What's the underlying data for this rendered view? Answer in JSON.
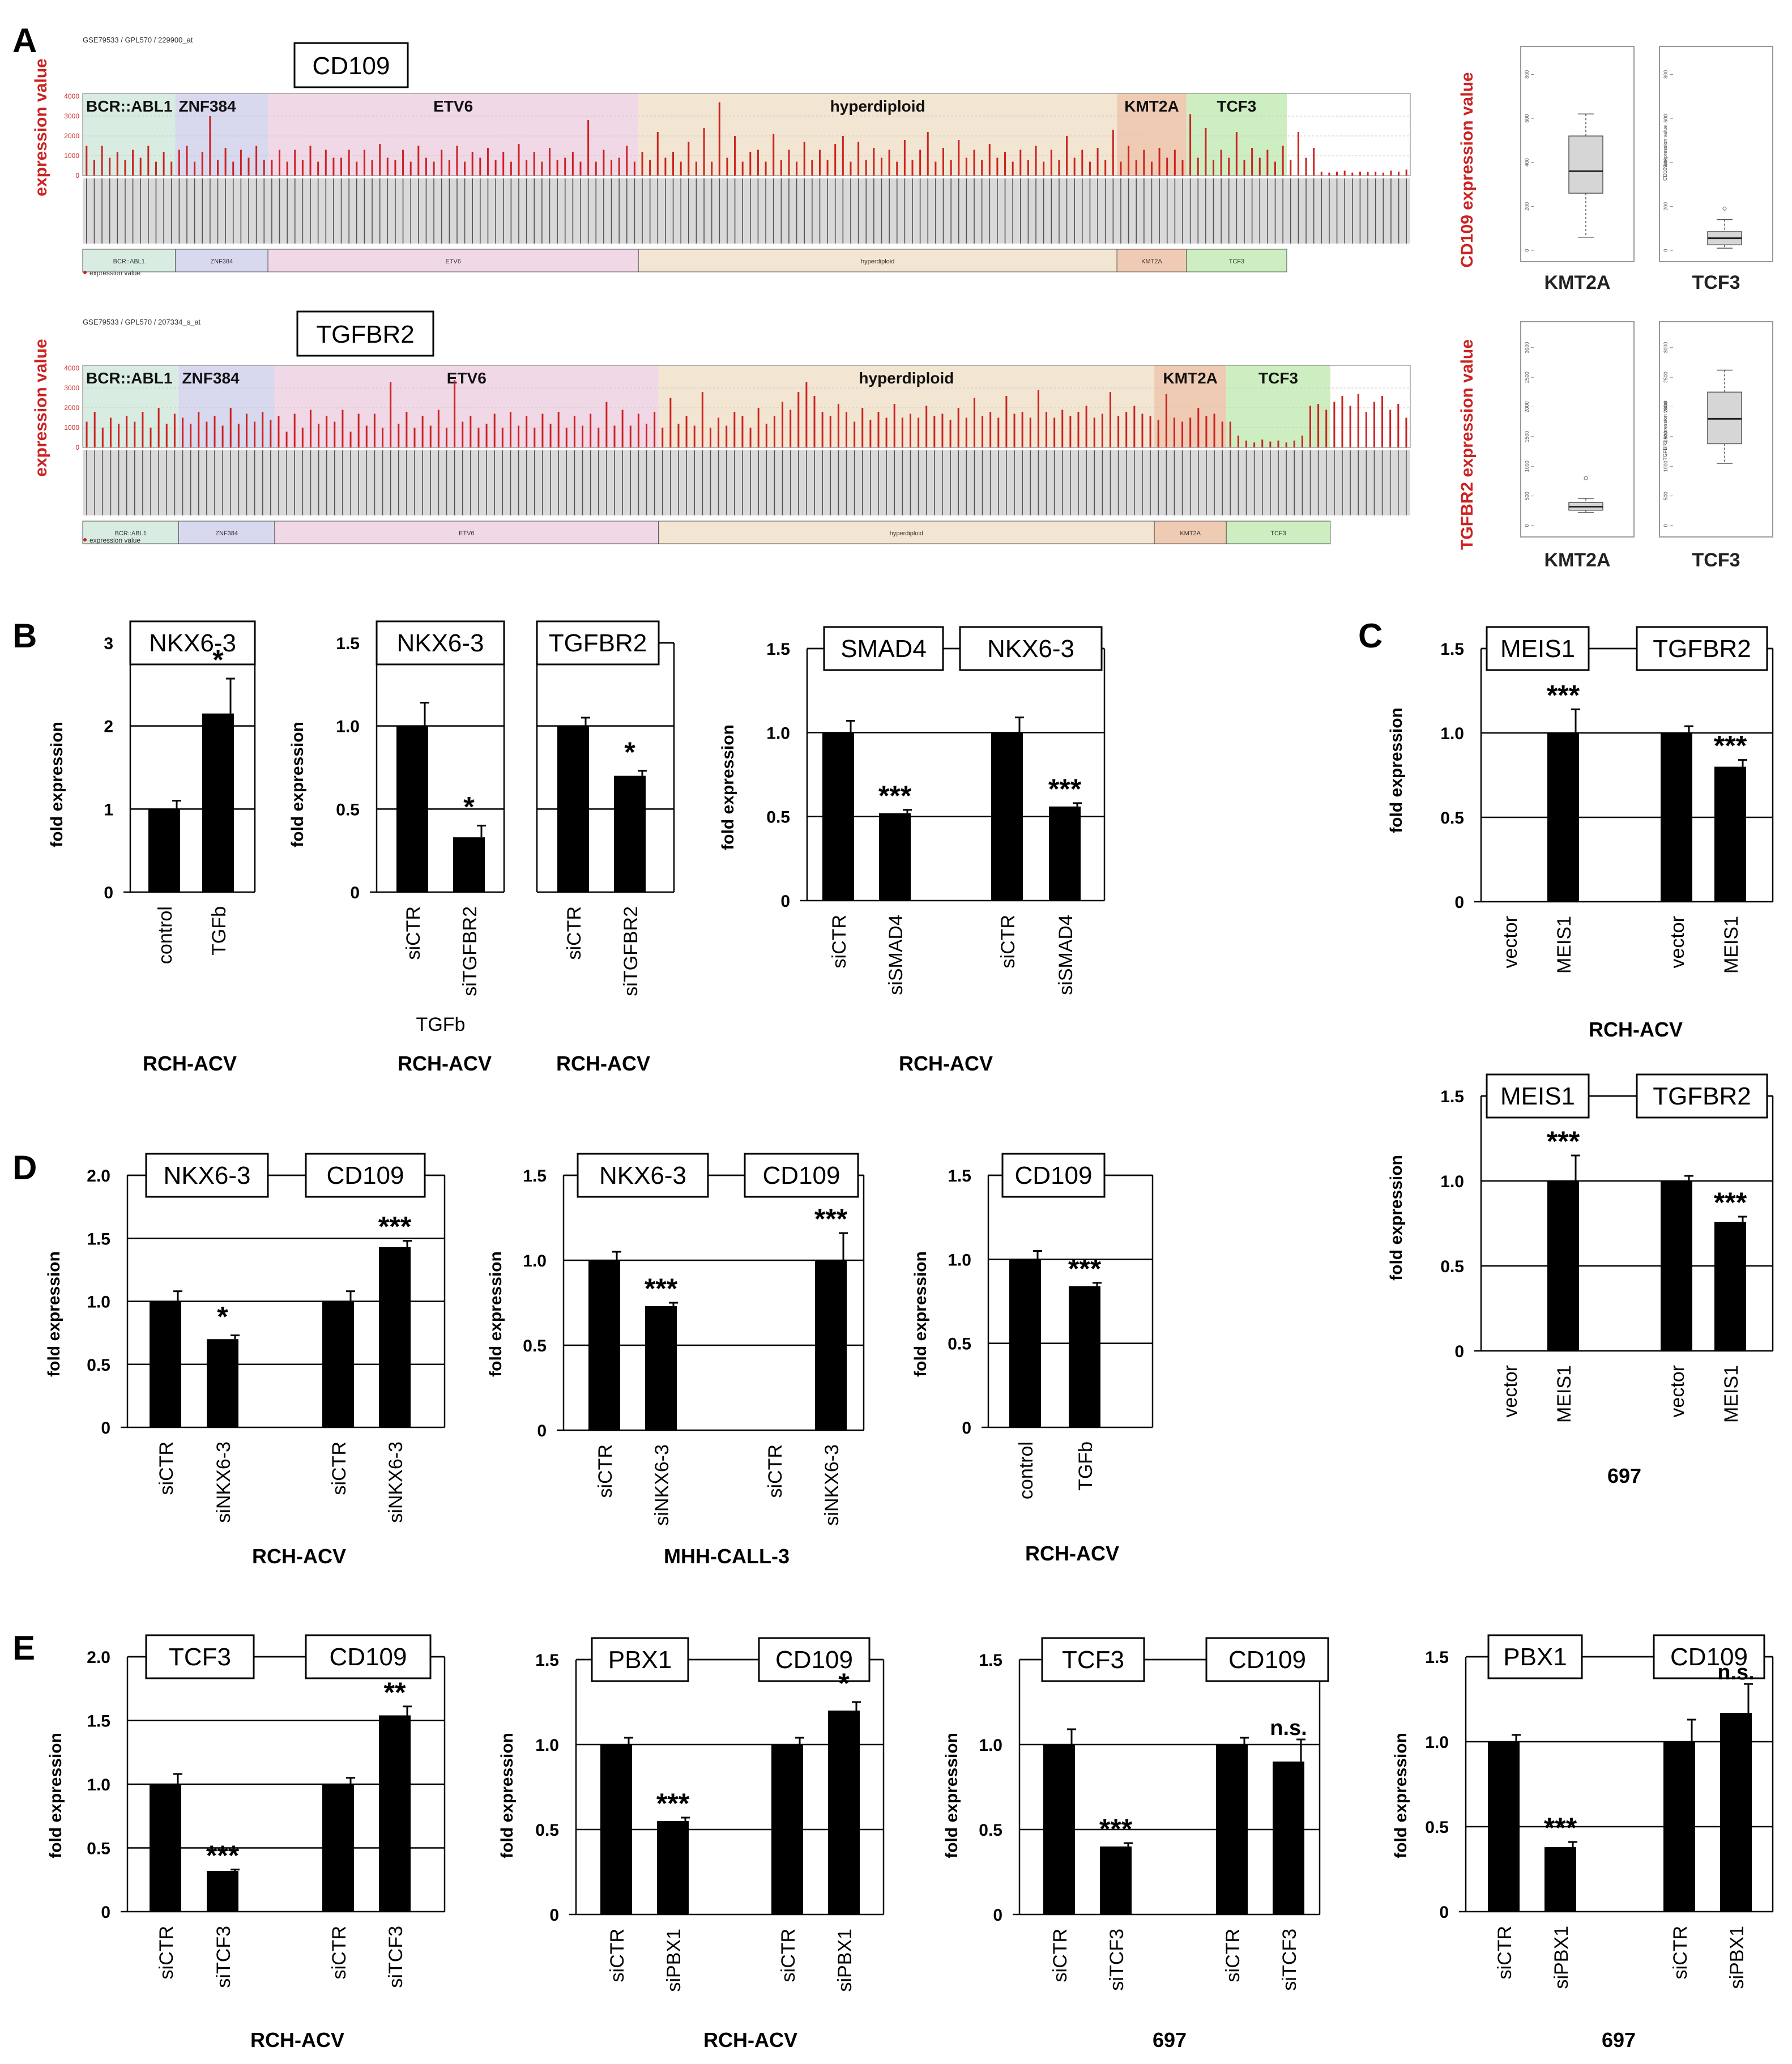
{
  "figure": {
    "panel_letters": [
      "A",
      "B",
      "C",
      "D",
      "E"
    ],
    "stat_labels": {
      "n3": "***",
      "n2": "**",
      "n1": "*",
      "ns": "n.s."
    },
    "fold_ylabel": "fold expression"
  },
  "panel_a": {
    "groups": [
      "BCR::ABL1",
      "ZNF384",
      "ETV6",
      "hyperdiploid",
      "KMT2A",
      "TCF3"
    ],
    "group_colors": [
      "#d8ece2",
      "#d8d8ee",
      "#f0d8e6",
      "#f2e6d2",
      "#efcbb4",
      "#cdeec0"
    ],
    "yaxis_label": "expression value",
    "legend_text": "expression value",
    "ytick_labels": [
      "4000",
      "3000",
      "2000",
      "1000",
      "0"
    ],
    "top_strip": {
      "gene": "CD109",
      "source": "GSE79533 / GPL570 / 229900_at",
      "box_ylabel": "CD109 expression value",
      "box_inner_label": "CD109 expression value",
      "box_ticks_kmt2a": [
        "800",
        "600",
        "400",
        "200",
        "0"
      ],
      "box_ticks_tcf3": [
        "800",
        "600",
        "400",
        "200",
        "0"
      ]
    },
    "bottom_strip": {
      "gene": "TGFBR2",
      "source": "GSE79533 / GPL570 / 207334_s_at",
      "box_ylabel": "TGFBR2 expression value",
      "box_inner_label": "TGFBR2 expression value",
      "box_ticks_kmt2a": [
        "3000",
        "2500",
        "2000",
        "1500",
        "1000",
        "500",
        "0"
      ],
      "box_ticks_tcf3": [
        "3000",
        "2500",
        "2000",
        "1500",
        "1000",
        "500",
        "0"
      ]
    }
  },
  "chart_data": [
    {
      "id": "A_cd109_strip",
      "type": "bar",
      "title": "CD109",
      "subtitle": "GSE79533 / GPL570 / 229900_at",
      "ylabel": "expression value",
      "ylim": [
        0,
        4000
      ],
      "groups": [
        "BCR::ABL1",
        "ZNF384",
        "ETV6",
        "hyperdiploid",
        "KMT2A",
        "TCF3"
      ],
      "group_sizes": [
        12,
        12,
        48,
        62,
        9,
        13
      ],
      "values": [
        1500,
        800,
        1500,
        900,
        1200,
        800,
        1300,
        900,
        1500,
        700,
        1200,
        700,
        1300,
        1500,
        700,
        1200,
        3000,
        800,
        1400,
        700,
        1300,
        900,
        1500,
        800,
        800,
        1300,
        700,
        1300,
        800,
        1500,
        700,
        1300,
        900,
        900,
        1300,
        700,
        1300,
        800,
        1600,
        900,
        800,
        1300,
        700,
        1500,
        900,
        700,
        1300,
        800,
        1500,
        700,
        1200,
        900,
        1400,
        800,
        1200,
        700,
        1600,
        800,
        1200,
        700,
        1400,
        800,
        900,
        1200,
        700,
        2800,
        700,
        1300,
        800,
        900,
        1500,
        700,
        1200,
        800,
        2200,
        900,
        1200,
        700,
        1700,
        700,
        2400,
        700,
        3700,
        900,
        2000,
        700,
        1200,
        1300,
        700,
        2100,
        800,
        1300,
        700,
        1700,
        800,
        1300,
        800,
        1600,
        2000,
        700,
        1700,
        800,
        1400,
        900,
        1300,
        700,
        1800,
        800,
        1300,
        2200,
        700,
        1400,
        800,
        1800,
        900,
        1300,
        800,
        1600,
        900,
        1200,
        700,
        1300,
        800,
        1500,
        700,
        1300,
        800,
        2000,
        900,
        1300,
        700,
        1400,
        800,
        2300,
        700,
        1500,
        800,
        1300,
        700,
        1400,
        900,
        1300,
        800,
        3100,
        900,
        2400,
        800,
        1300,
        900,
        2200,
        800,
        1400,
        900,
        1300,
        700,
        1500,
        800,
        2200,
        900,
        1400,
        200,
        150,
        200,
        250,
        150,
        200,
        180,
        200,
        150,
        250,
        200,
        300
      ],
      "boxplots": [
        {
          "group": "KMT2A",
          "min": 60,
          "q1": 260,
          "median": 360,
          "q3": 520,
          "max": 620,
          "ylim": [
            0,
            850
          ]
        },
        {
          "group": "TCF3",
          "min": 10,
          "q1": 25,
          "median": 55,
          "q3": 85,
          "max": 140,
          "outliers": [
            190
          ],
          "ylim": [
            0,
            850
          ]
        }
      ]
    },
    {
      "id": "A_tgfbr2_strip",
      "type": "bar",
      "title": "TGFBR2",
      "subtitle": "GSE79533 / GPL570 / 207334_s_at",
      "ylabel": "expression value",
      "ylim": [
        0,
        4000
      ],
      "groups": [
        "BCR::ABL1",
        "ZNF384",
        "ETV6",
        "hyperdiploid",
        "KMT2A",
        "TCF3"
      ],
      "group_sizes": [
        12,
        12,
        48,
        62,
        9,
        13
      ],
      "values": [
        1300,
        1800,
        1000,
        1500,
        1200,
        1600,
        1300,
        1800,
        1000,
        2000,
        1200,
        1700,
        1500,
        1200,
        1800,
        1300,
        1600,
        1100,
        2000,
        1200,
        1700,
        1300,
        1800,
        1400,
        1600,
        800,
        1700,
        1000,
        1900,
        1200,
        1600,
        1300,
        1900,
        800,
        1700,
        1100,
        1700,
        1000,
        3300,
        1200,
        1800,
        1000,
        1600,
        1100,
        1900,
        1000,
        3400,
        1300,
        1600,
        1000,
        1200,
        1700,
        1000,
        1800,
        1100,
        1600,
        1000,
        1700,
        1200,
        1800,
        1000,
        1600,
        1100,
        1700,
        1000,
        2300,
        1100,
        1900,
        1100,
        1700,
        1200,
        1800,
        1000,
        2500,
        1200,
        1600,
        1100,
        2800,
        1000,
        1500,
        1100,
        1800,
        1600,
        1000,
        2000,
        1200,
        1600,
        2300,
        1900,
        2800,
        3300,
        2600,
        1800,
        1600,
        2200,
        1800,
        1300,
        2000,
        1400,
        1800,
        1500,
        2200,
        1500,
        1700,
        1500,
        2100,
        1600,
        1700,
        1400,
        2000,
        1500,
        2500,
        1600,
        1800,
        1500,
        2600,
        1700,
        1800,
        1500,
        2900,
        1800,
        1500,
        1900,
        1600,
        1800,
        2100,
        1500,
        1700,
        2800,
        1600,
        1800,
        2100,
        1700,
        1600,
        1400,
        2700,
        1500,
        1300,
        1500,
        2000,
        1600,
        1700,
        1300,
        1300,
        600,
        350,
        250,
        400,
        300,
        350,
        250,
        350,
        600,
        2100,
        2200,
        1900,
        2300,
        2600,
        2100,
        2700,
        1800,
        2300,
        2600,
        1900,
        2200,
        1500
      ],
      "boxplots": [
        {
          "group": "KMT2A",
          "min": 220,
          "q1": 260,
          "median": 320,
          "q3": 390,
          "max": 460,
          "outliers": [
            800
          ],
          "ylim": [
            0,
            3150
          ]
        },
        {
          "group": "TCF3",
          "min": 1050,
          "q1": 1380,
          "median": 1800,
          "q3": 2250,
          "max": 2620,
          "ylim": [
            0,
            3150
          ]
        }
      ]
    },
    {
      "id": "B1",
      "type": "bar",
      "genes": [
        "NKX6-3"
      ],
      "categories": [
        "control",
        "TGFb"
      ],
      "values": [
        1.0,
        2.15
      ],
      "errors": [
        0.1,
        0.42
      ],
      "significance": [
        "",
        "*"
      ],
      "ytick_labels": [
        "0",
        "1",
        "2",
        "3"
      ],
      "ylim": [
        0,
        3
      ],
      "ylabel": "fold expression",
      "cell_line": "RCH-ACV"
    },
    {
      "id": "B2",
      "type": "bar",
      "genes": [
        "NKX6-3"
      ],
      "categories": [
        "siCTR",
        "siTGFBR2"
      ],
      "values": [
        1.0,
        0.33
      ],
      "errors": [
        0.14,
        0.07
      ],
      "significance": [
        "",
        "*"
      ],
      "ytick_labels": [
        "0",
        "0.5",
        "1.0",
        "1.5"
      ],
      "ylim": [
        0,
        1.5
      ],
      "ylabel": "fold expression",
      "treatment": "TGFb",
      "cell_line": "RCH-ACV"
    },
    {
      "id": "B3",
      "type": "bar",
      "genes": [
        "TGFBR2"
      ],
      "categories": [
        "siCTR",
        "siTGFBR2"
      ],
      "values": [
        1.0,
        0.7
      ],
      "errors": [
        0.05,
        0.03
      ],
      "significance": [
        "",
        "*"
      ],
      "ylim": [
        0,
        1.5
      ],
      "cell_line": "RCH-ACV"
    },
    {
      "id": "B4",
      "type": "bar",
      "genes": [
        "SMAD4",
        "NKX6-3"
      ],
      "categories": [
        "siCTR",
        "siSMAD4",
        "siCTR",
        "siSMAD4"
      ],
      "values": [
        1.0,
        0.52,
        1.0,
        0.56
      ],
      "errors": [
        0.07,
        0.02,
        0.09,
        0.02
      ],
      "significance": [
        "",
        "***",
        "",
        "***"
      ],
      "ytick_labels": [
        "0",
        "0.5",
        "1.0",
        "1.5"
      ],
      "ylim": [
        0,
        1.5
      ],
      "ylabel": "fold expression",
      "cell_line": "RCH-ACV"
    },
    {
      "id": "C_top",
      "type": "bar",
      "genes": [
        "MEIS1",
        "TGFBR2"
      ],
      "categories": [
        "vector",
        "MEIS1",
        "vector",
        "MEIS1"
      ],
      "values": [
        0.0,
        1.0,
        1.0,
        0.8
      ],
      "errors": [
        0,
        0.14,
        0.04,
        0.04
      ],
      "significance": [
        "",
        "***",
        "",
        "***"
      ],
      "ytick_labels": [
        "0",
        "0.5",
        "1.0",
        "1.5"
      ],
      "ylim": [
        0,
        1.5
      ],
      "ylabel": "fold expression",
      "cell_line": "RCH-ACV"
    },
    {
      "id": "C_bottom",
      "type": "bar",
      "genes": [
        "MEIS1",
        "TGFBR2"
      ],
      "categories": [
        "vector",
        "MEIS1",
        "vector",
        "MEIS1"
      ],
      "values": [
        0.0,
        1.0,
        1.0,
        0.76
      ],
      "errors": [
        0,
        0.15,
        0.03,
        0.03
      ],
      "significance": [
        "",
        "***",
        "",
        "***"
      ],
      "ytick_labels": [
        "0",
        "0.5",
        "1.0",
        "1.5"
      ],
      "ylim": [
        0,
        1.5
      ],
      "ylabel": "fold expression",
      "cell_line": "697"
    },
    {
      "id": "D1",
      "type": "bar",
      "genes": [
        "NKX6-3",
        "CD109"
      ],
      "categories": [
        "siCTR",
        "siNKX6-3",
        "siCTR",
        "siNKX6-3"
      ],
      "values": [
        1.0,
        0.7,
        1.0,
        1.43
      ],
      "errors": [
        0.08,
        0.03,
        0.08,
        0.05
      ],
      "significance": [
        "",
        "*",
        "",
        "***"
      ],
      "ytick_labels": [
        "0",
        "0.5",
        "1.0",
        "1.5",
        "2.0"
      ],
      "ylim": [
        0,
        2.0
      ],
      "ylabel": "fold expression",
      "cell_line": "RCH-ACV"
    },
    {
      "id": "D2",
      "type": "bar",
      "genes": [
        "NKX6-3",
        "CD109"
      ],
      "categories": [
        "siCTR",
        "siNKX6-3",
        "siCTR",
        "siNKX6-3"
      ],
      "values": [
        1.0,
        0.73,
        0.0,
        1.0
      ],
      "errors": [
        0.05,
        0.02,
        0,
        0.16
      ],
      "significance": [
        "",
        "***",
        "",
        "***"
      ],
      "ytick_labels": [
        "0",
        "0.5",
        "1.0",
        "1.5"
      ],
      "ylim": [
        0,
        1.5
      ],
      "ylabel": "fold expression",
      "cell_line": "MHH-CALL-3"
    },
    {
      "id": "D3",
      "type": "bar",
      "genes": [
        "CD109"
      ],
      "categories": [
        "control",
        "TGFb"
      ],
      "values": [
        1.0,
        0.84
      ],
      "errors": [
        0.05,
        0.02
      ],
      "significance": [
        "",
        "***"
      ],
      "ytick_labels": [
        "0",
        "0.5",
        "1.0",
        "1.5"
      ],
      "ylim": [
        0,
        1.5
      ],
      "ylabel": "fold expression",
      "cell_line": "RCH-ACV"
    },
    {
      "id": "E1",
      "type": "bar",
      "genes": [
        "TCF3",
        "CD109"
      ],
      "categories": [
        "siCTR",
        "siTCF3",
        "siCTR",
        "siTCF3"
      ],
      "values": [
        1.0,
        0.32,
        1.0,
        1.54
      ],
      "errors": [
        0.08,
        0.01,
        0.05,
        0.07
      ],
      "significance": [
        "",
        "***",
        "",
        "**"
      ],
      "ytick_labels": [
        "0",
        "0.5",
        "1.0",
        "1.5",
        "2.0"
      ],
      "ylim": [
        0,
        2.0
      ],
      "ylabel": "fold expression",
      "cell_line": "RCH-ACV"
    },
    {
      "id": "E2",
      "type": "bar",
      "genes": [
        "PBX1",
        "CD109"
      ],
      "categories": [
        "siCTR",
        "siPBX1",
        "siCTR",
        "siPBX1"
      ],
      "values": [
        1.0,
        0.55,
        1.0,
        1.2
      ],
      "errors": [
        0.04,
        0.02,
        0.04,
        0.05
      ],
      "significance": [
        "",
        "***",
        "",
        "*"
      ],
      "ytick_labels": [
        "0",
        "0.5",
        "1.0",
        "1.5"
      ],
      "ylim": [
        0,
        1.5
      ],
      "ylabel": "fold expression",
      "cell_line": "RCH-ACV"
    },
    {
      "id": "E3",
      "type": "bar",
      "genes": [
        "TCF3",
        "CD109"
      ],
      "categories": [
        "siCTR",
        "siTCF3",
        "siCTR",
        "siTCF3"
      ],
      "values": [
        1.0,
        0.4,
        1.0,
        0.9
      ],
      "errors": [
        0.09,
        0.02,
        0.04,
        0.13
      ],
      "significance": [
        "",
        "***",
        "",
        "n.s."
      ],
      "ytick_labels": [
        "0",
        "0.5",
        "1.0",
        "1.5"
      ],
      "ylim": [
        0,
        1.5
      ],
      "ylabel": "fold expression",
      "cell_line": "697"
    },
    {
      "id": "E4",
      "type": "bar",
      "genes": [
        "PBX1",
        "CD109"
      ],
      "categories": [
        "siCTR",
        "siPBX1",
        "siCTR",
        "siPBX1"
      ],
      "values": [
        1.0,
        0.38,
        1.0,
        1.17
      ],
      "errors": [
        0.04,
        0.03,
        0.13,
        0.17
      ],
      "significance": [
        "",
        "***",
        "",
        "n.s."
      ],
      "ytick_labels": [
        "0",
        "0.5",
        "1.0",
        "1.5"
      ],
      "ylim": [
        0,
        1.5
      ],
      "ylabel": "fold expression",
      "cell_line": "697"
    }
  ]
}
